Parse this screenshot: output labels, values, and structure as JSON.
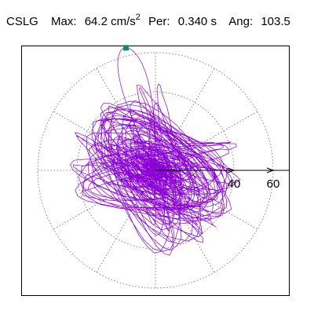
{
  "header": {
    "station": "CSLG",
    "max_label": "Max:",
    "max_value": "64.2 cm/s",
    "max_exp": "2",
    "per_label": "Per:",
    "per_value": "0.340 s",
    "ang_label": "Ang:",
    "ang_value": "103.5"
  },
  "chart_data": {
    "type": "polar-orbit",
    "radial_ticks": [
      "40",
      "60"
    ],
    "radial_tick_values": [
      40,
      60
    ],
    "rings": [
      20,
      40,
      60
    ],
    "spoke_step_deg": 30,
    "grid": "dotted",
    "max_radius": 64.2,
    "peak_angle_deg": 103.5,
    "orbit_color": "#8b00d6",
    "marker_color": "#009070",
    "axis_color": "#000000"
  }
}
